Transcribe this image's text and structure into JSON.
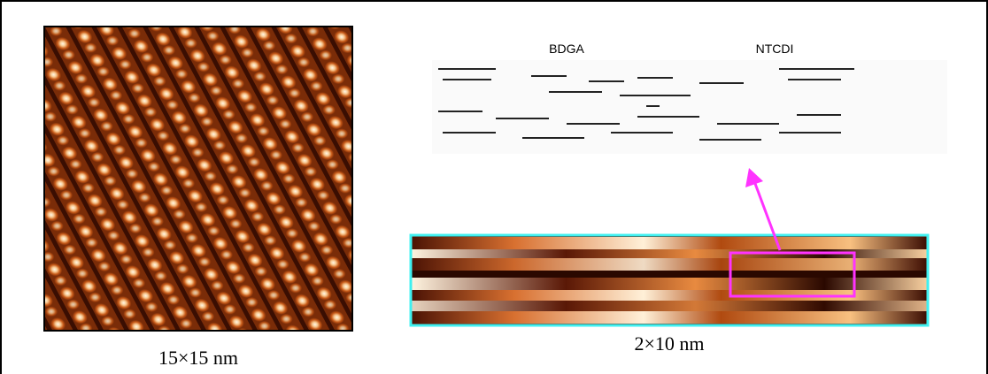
{
  "figure": {
    "left_caption": "15×15 nm",
    "right_caption": "2×10 nm",
    "molecule_1": "BDGA",
    "molecule_2": "NTCDI"
  }
}
